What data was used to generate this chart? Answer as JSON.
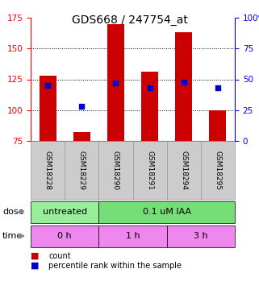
{
  "title": "GDS668 / 247754_at",
  "samples": [
    "GSM18228",
    "GSM18229",
    "GSM18290",
    "GSM18291",
    "GSM18294",
    "GSM18295"
  ],
  "counts": [
    128,
    82,
    170,
    131,
    163,
    100
  ],
  "percentiles": [
    45,
    28,
    47,
    43,
    48,
    43
  ],
  "ylim_left": [
    75,
    175
  ],
  "ylim_right": [
    0,
    100
  ],
  "yticks_left": [
    75,
    100,
    125,
    150,
    175
  ],
  "yticks_right": [
    0,
    25,
    50,
    75,
    100
  ],
  "bar_color": "#cc0000",
  "marker_color": "#0000cc",
  "bar_width": 0.5,
  "dose_labels": [
    {
      "label": "untreated",
      "start": 0,
      "end": 2,
      "color": "#99ee99"
    },
    {
      "label": "0.1 uM IAA",
      "start": 2,
      "end": 6,
      "color": "#77dd77"
    }
  ],
  "time_labels": [
    {
      "label": "0 h",
      "start": 0,
      "end": 2,
      "color": "#ee88ee"
    },
    {
      "label": "1 h",
      "start": 2,
      "end": 4,
      "color": "#ee88ee"
    },
    {
      "label": "3 h",
      "start": 4,
      "end": 6,
      "color": "#ee88ee"
    }
  ],
  "legend_red": "count",
  "legend_blue": "percentile rank within the sample",
  "title_fontsize": 10,
  "tick_fontsize": 7.5,
  "sample_bg_color": "#cccccc",
  "sample_border_color": "#999999",
  "dose_green_light": "#aaffaa",
  "dose_green_dark": "#66dd66",
  "time_pink": "#ee99ee"
}
